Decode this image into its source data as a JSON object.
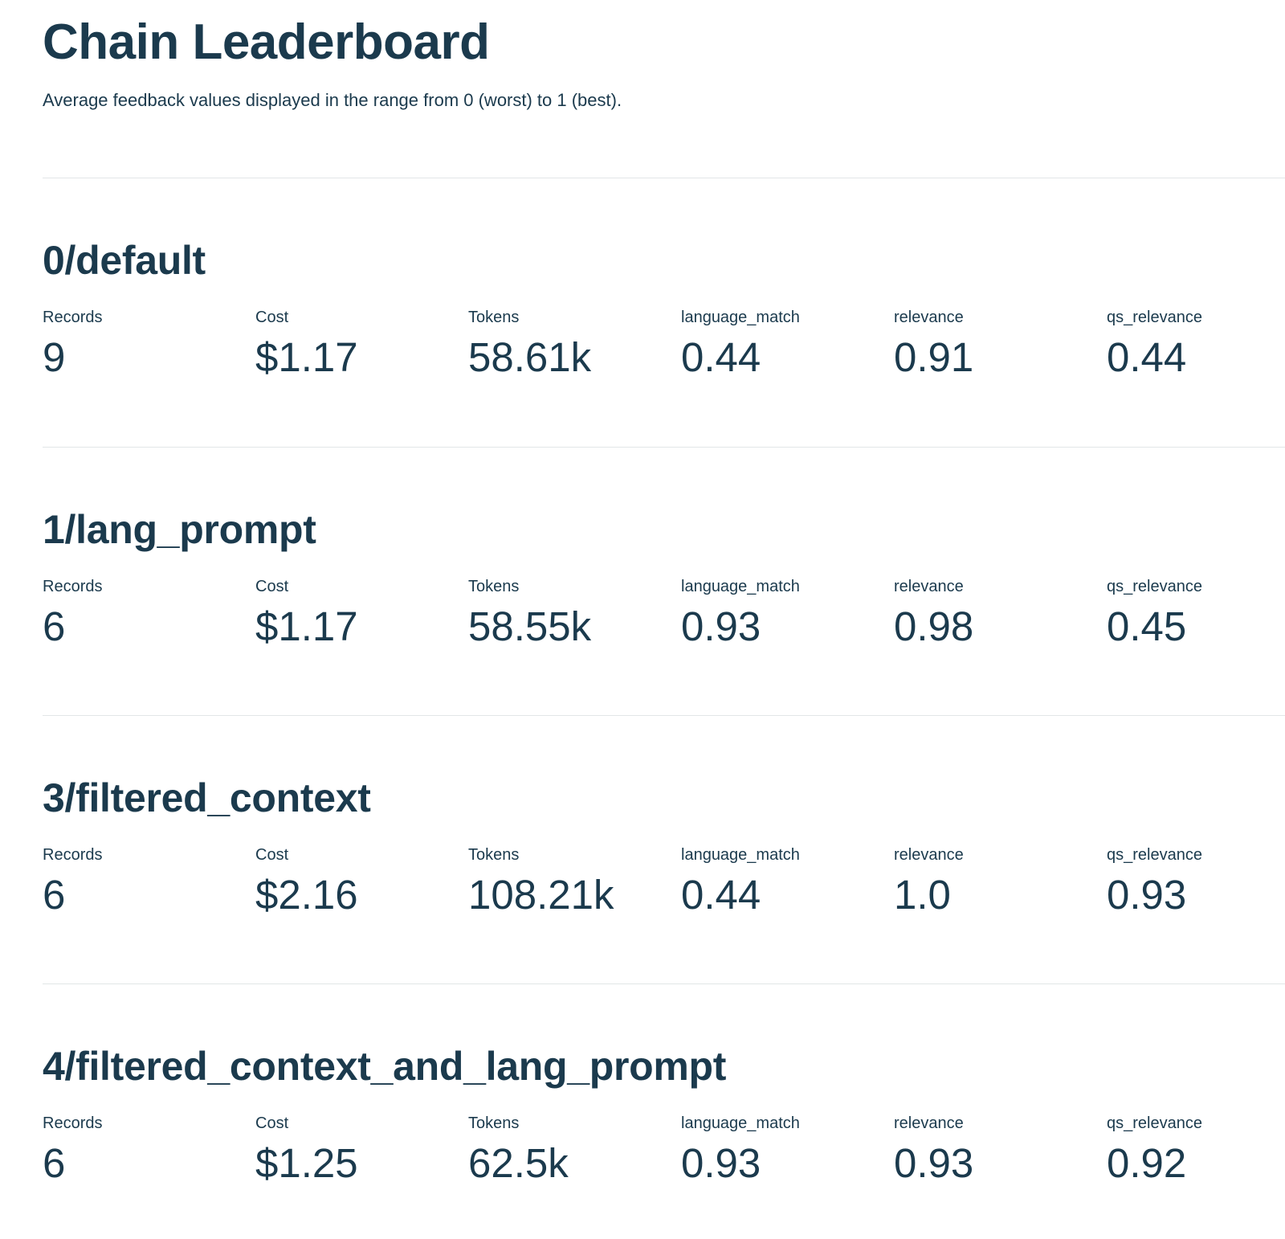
{
  "page": {
    "title": "Chain Leaderboard",
    "subtitle": "Average feedback values displayed in the range from 0 (worst) to 1 (best)."
  },
  "metric_columns": [
    "Records",
    "Cost",
    "Tokens",
    "language_match",
    "relevance",
    "qs_relevance"
  ],
  "sections": [
    {
      "name": "0/default",
      "values": [
        "9",
        "$1.17",
        "58.61k",
        "0.44",
        "0.91",
        "0.44"
      ]
    },
    {
      "name": "1/lang_prompt",
      "values": [
        "6",
        "$1.17",
        "58.55k",
        "0.93",
        "0.98",
        "0.45"
      ]
    },
    {
      "name": "3/filtered_context",
      "values": [
        "6",
        "$2.16",
        "108.21k",
        "0.44",
        "1.0",
        "0.93"
      ]
    },
    {
      "name": "4/filtered_context_and_lang_prompt",
      "values": [
        "6",
        "$1.25",
        "62.5k",
        "0.93",
        "0.93",
        "0.92"
      ]
    }
  ],
  "colors": {
    "text": "#1b3a4d",
    "divider": "#e2e6e7",
    "background": "#ffffff"
  }
}
